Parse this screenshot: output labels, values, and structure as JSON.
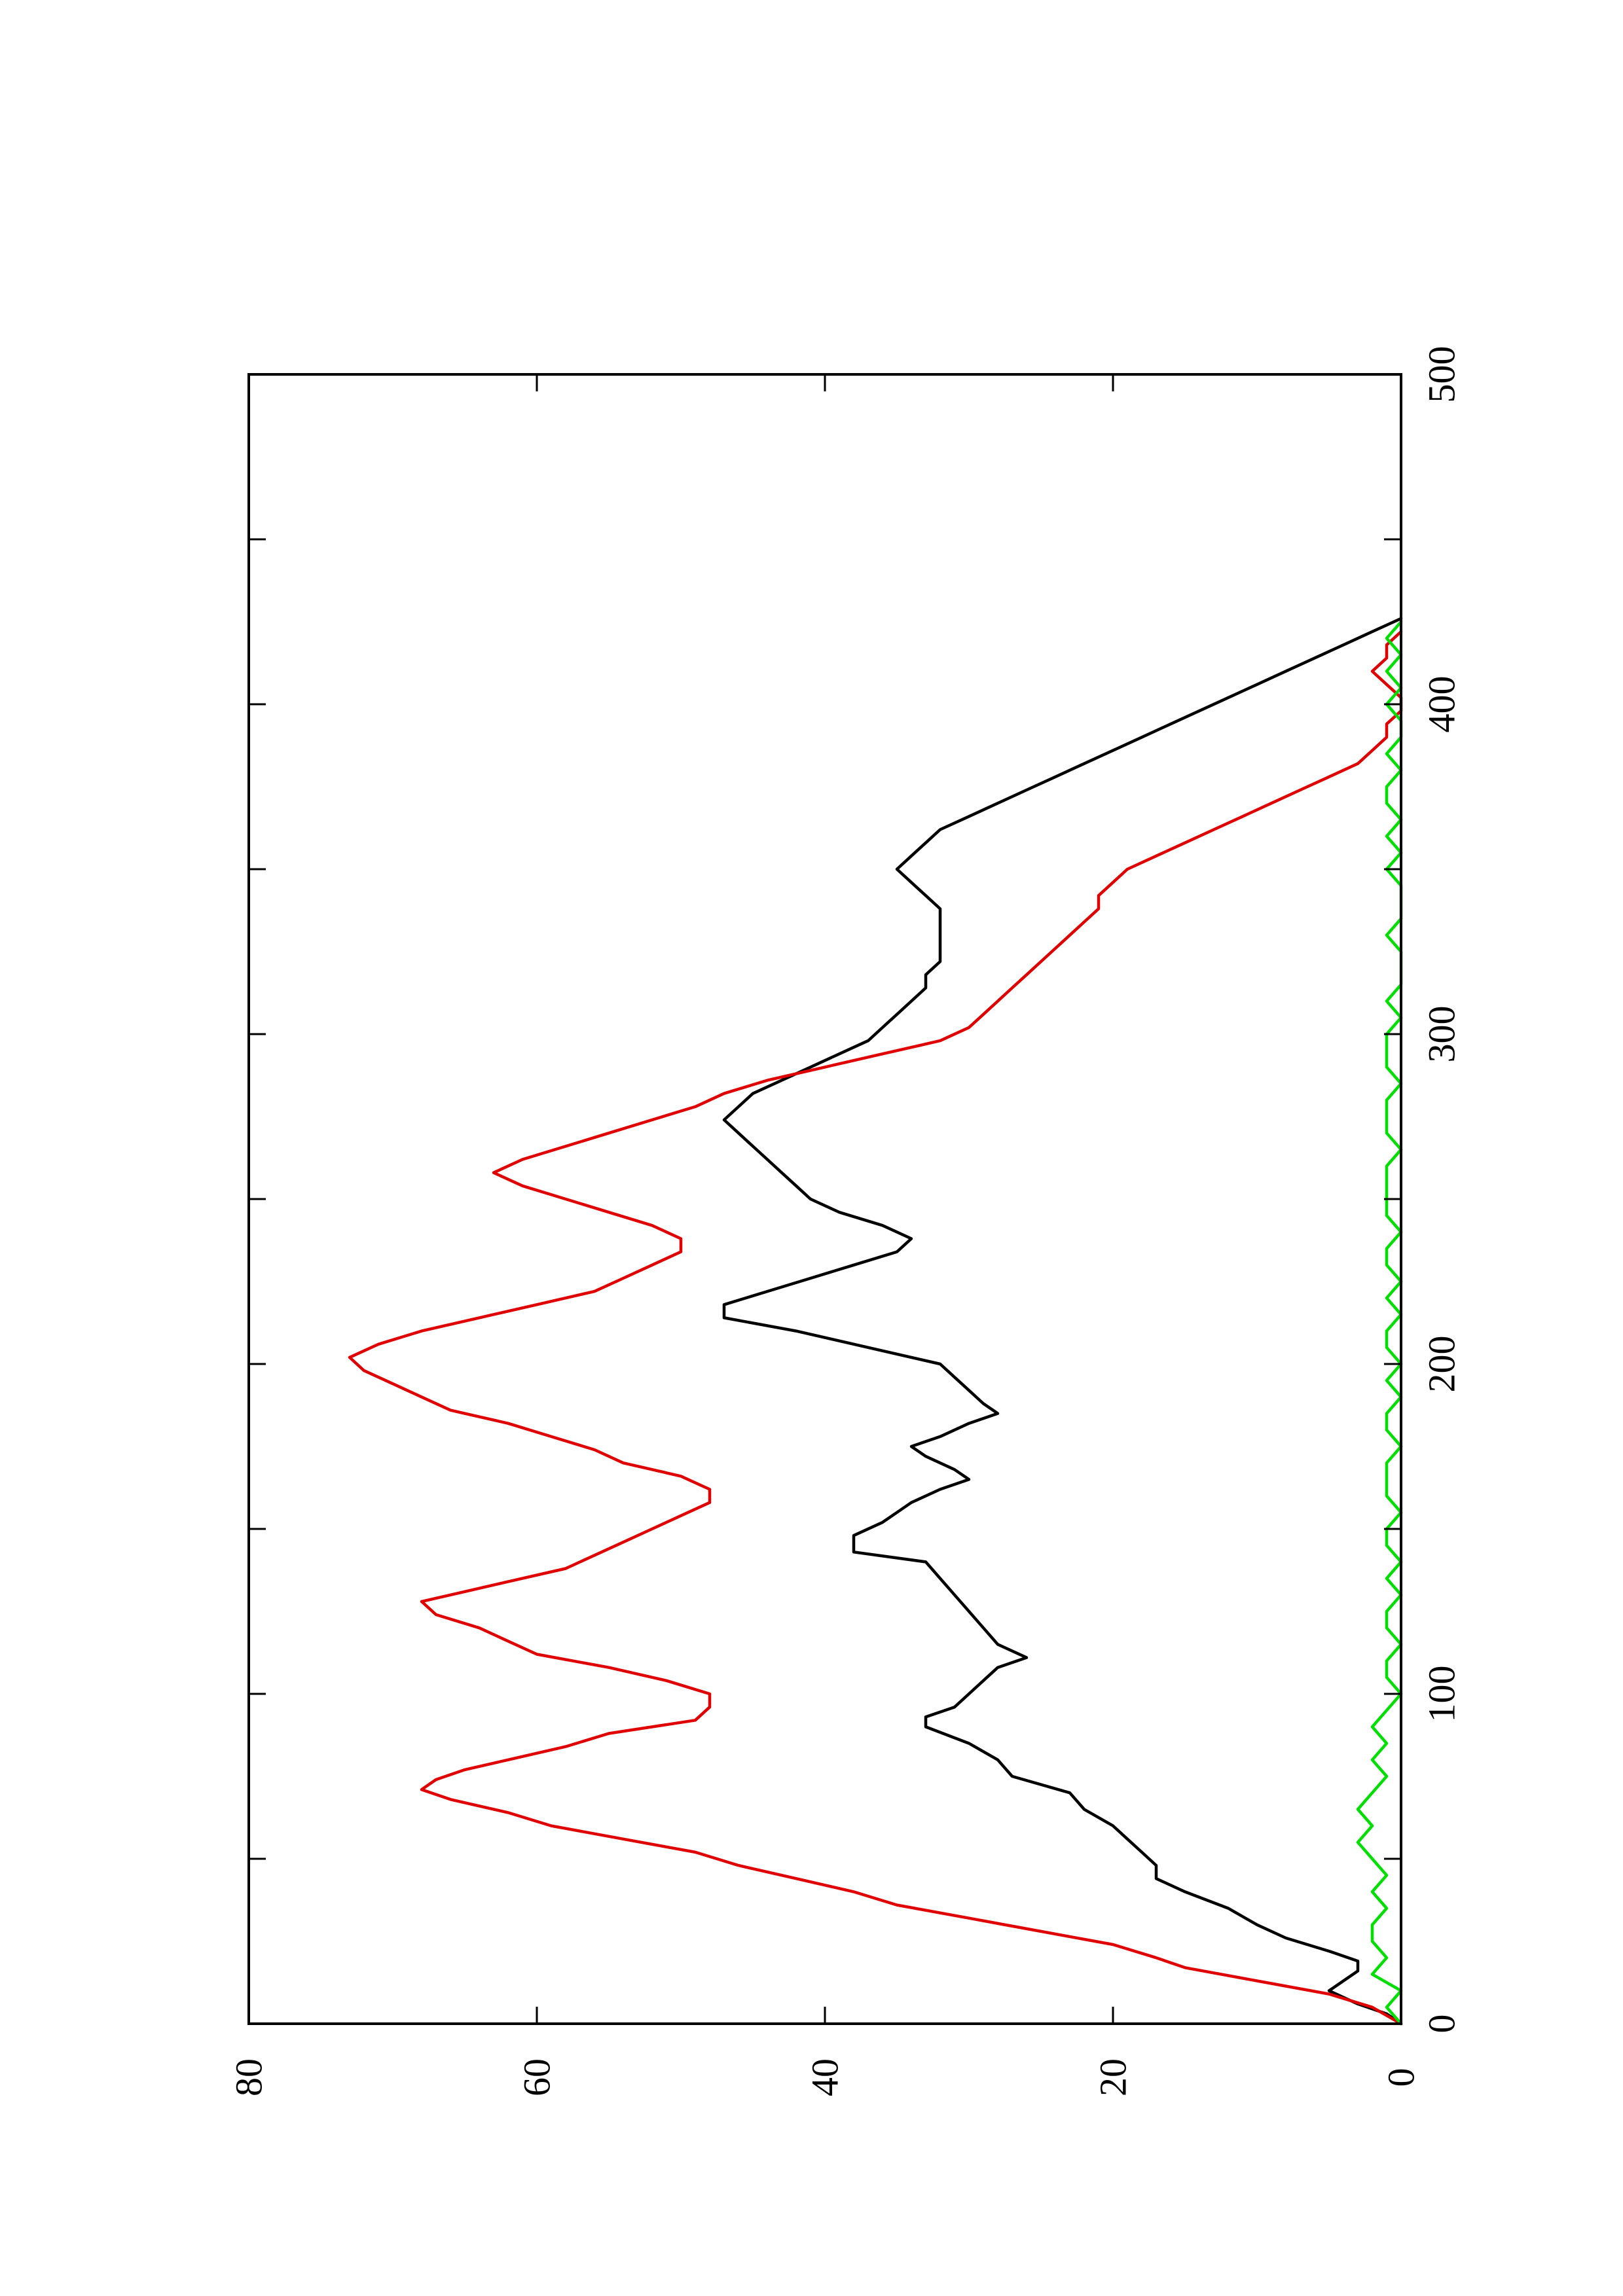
{
  "chart_data": {
    "type": "line",
    "title": "",
    "xlabel": "",
    "ylabel": "",
    "orientation": "rotated-90-counterclockwise",
    "grid": false,
    "legend": "none",
    "xlim": [
      0,
      500
    ],
    "ylim": [
      0,
      80
    ],
    "x_ticks": [
      0,
      100,
      200,
      300,
      400,
      500
    ],
    "x_minor_ticks": [
      50,
      150,
      250,
      350,
      450
    ],
    "y_ticks": [
      0,
      20,
      40,
      60,
      80
    ],
    "x_tick_labels": [
      "0",
      "100",
      "200",
      "300",
      "400",
      "500"
    ],
    "y_tick_labels": [
      "0",
      "20",
      "40",
      "60",
      "80"
    ],
    "series": [
      {
        "color": "#000000",
        "points": [
          [
            0,
            0
          ],
          [
            3,
            1
          ],
          [
            6,
            3
          ],
          [
            10,
            5
          ],
          [
            13,
            4
          ],
          [
            16,
            3
          ],
          [
            19,
            3
          ],
          [
            22,
            5
          ],
          [
            26,
            8
          ],
          [
            30,
            10
          ],
          [
            35,
            12
          ],
          [
            40,
            15
          ],
          [
            44,
            17
          ],
          [
            48,
            17
          ],
          [
            52,
            18
          ],
          [
            56,
            19
          ],
          [
            60,
            20
          ],
          [
            65,
            22
          ],
          [
            70,
            23
          ],
          [
            75,
            27
          ],
          [
            80,
            28
          ],
          [
            85,
            30
          ],
          [
            90,
            33
          ],
          [
            93,
            33
          ],
          [
            96,
            31
          ],
          [
            100,
            30
          ],
          [
            104,
            29
          ],
          [
            108,
            28
          ],
          [
            111,
            26
          ],
          [
            115,
            28
          ],
          [
            120,
            29
          ],
          [
            125,
            30
          ],
          [
            130,
            31
          ],
          [
            135,
            32
          ],
          [
            140,
            33
          ],
          [
            143,
            38
          ],
          [
            148,
            38
          ],
          [
            152,
            36
          ],
          [
            155,
            35
          ],
          [
            158,
            34
          ],
          [
            162,
            32
          ],
          [
            165,
            30
          ],
          [
            168,
            31
          ],
          [
            172,
            33
          ],
          [
            175,
            34
          ],
          [
            178,
            32
          ],
          [
            182,
            30
          ],
          [
            185,
            28
          ],
          [
            188,
            29
          ],
          [
            192,
            30
          ],
          [
            196,
            31
          ],
          [
            200,
            32
          ],
          [
            205,
            37
          ],
          [
            210,
            42
          ],
          [
            214,
            47
          ],
          [
            218,
            47
          ],
          [
            222,
            44
          ],
          [
            226,
            41
          ],
          [
            230,
            38
          ],
          [
            234,
            35
          ],
          [
            238,
            34
          ],
          [
            242,
            36
          ],
          [
            246,
            39
          ],
          [
            250,
            41
          ],
          [
            254,
            42
          ],
          [
            258,
            43
          ],
          [
            262,
            44
          ],
          [
            266,
            45
          ],
          [
            270,
            46
          ],
          [
            274,
            47
          ],
          [
            278,
            46
          ],
          [
            282,
            45
          ],
          [
            286,
            43
          ],
          [
            290,
            41
          ],
          [
            294,
            39
          ],
          [
            298,
            37
          ],
          [
            302,
            36
          ],
          [
            306,
            35
          ],
          [
            310,
            34
          ],
          [
            314,
            33
          ],
          [
            318,
            33
          ],
          [
            322,
            32
          ],
          [
            326,
            32
          ],
          [
            330,
            32
          ],
          [
            334,
            32
          ],
          [
            338,
            32
          ],
          [
            342,
            33
          ],
          [
            346,
            34
          ],
          [
            350,
            35
          ],
          [
            354,
            34
          ],
          [
            358,
            33
          ],
          [
            362,
            32
          ],
          [
            366,
            30
          ],
          [
            370,
            28
          ],
          [
            374,
            26
          ],
          [
            378,
            24
          ],
          [
            382,
            22
          ],
          [
            386,
            20
          ],
          [
            390,
            18
          ],
          [
            394,
            16
          ],
          [
            398,
            14
          ],
          [
            402,
            12
          ],
          [
            406,
            10
          ],
          [
            410,
            8
          ],
          [
            414,
            6
          ],
          [
            418,
            4
          ],
          [
            422,
            2
          ],
          [
            426,
            0
          ]
        ]
      },
      {
        "color": "#e00000",
        "points": [
          [
            0,
            0
          ],
          [
            5,
            2
          ],
          [
            9,
            5
          ],
          [
            13,
            10
          ],
          [
            17,
            15
          ],
          [
            20,
            17
          ],
          [
            24,
            20
          ],
          [
            28,
            25
          ],
          [
            32,
            30
          ],
          [
            36,
            35
          ],
          [
            40,
            38
          ],
          [
            44,
            42
          ],
          [
            48,
            46
          ],
          [
            52,
            49
          ],
          [
            56,
            54
          ],
          [
            60,
            59
          ],
          [
            64,
            62
          ],
          [
            68,
            66
          ],
          [
            71,
            68
          ],
          [
            74,
            67
          ],
          [
            77,
            65
          ],
          [
            80,
            62
          ],
          [
            84,
            58
          ],
          [
            88,
            55
          ],
          [
            92,
            49
          ],
          [
            96,
            48
          ],
          [
            100,
            48
          ],
          [
            104,
            51
          ],
          [
            108,
            55
          ],
          [
            112,
            60
          ],
          [
            116,
            62
          ],
          [
            120,
            64
          ],
          [
            124,
            67
          ],
          [
            128,
            68
          ],
          [
            131,
            65
          ],
          [
            134,
            62
          ],
          [
            138,
            58
          ],
          [
            142,
            56
          ],
          [
            146,
            54
          ],
          [
            150,
            52
          ],
          [
            154,
            50
          ],
          [
            158,
            48
          ],
          [
            162,
            48
          ],
          [
            166,
            50
          ],
          [
            170,
            54
          ],
          [
            174,
            56
          ],
          [
            178,
            59
          ],
          [
            182,
            62
          ],
          [
            186,
            66
          ],
          [
            190,
            68
          ],
          [
            194,
            70
          ],
          [
            198,
            72
          ],
          [
            202,
            73
          ],
          [
            206,
            71
          ],
          [
            210,
            68
          ],
          [
            214,
            64
          ],
          [
            218,
            60
          ],
          [
            222,
            56
          ],
          [
            226,
            54
          ],
          [
            230,
            52
          ],
          [
            234,
            50
          ],
          [
            238,
            50
          ],
          [
            242,
            52
          ],
          [
            246,
            55
          ],
          [
            250,
            58
          ],
          [
            254,
            61
          ],
          [
            258,
            63
          ],
          [
            262,
            61
          ],
          [
            266,
            58
          ],
          [
            270,
            55
          ],
          [
            274,
            52
          ],
          [
            278,
            49
          ],
          [
            282,
            47
          ],
          [
            286,
            44
          ],
          [
            290,
            40
          ],
          [
            294,
            36
          ],
          [
            298,
            32
          ],
          [
            302,
            30
          ],
          [
            306,
            29
          ],
          [
            310,
            28
          ],
          [
            314,
            27
          ],
          [
            318,
            26
          ],
          [
            322,
            25
          ],
          [
            326,
            24
          ],
          [
            330,
            23
          ],
          [
            334,
            22
          ],
          [
            338,
            21
          ],
          [
            342,
            21
          ],
          [
            346,
            20
          ],
          [
            350,
            19
          ],
          [
            354,
            17
          ],
          [
            358,
            15
          ],
          [
            362,
            13
          ],
          [
            366,
            11
          ],
          [
            370,
            9
          ],
          [
            374,
            7
          ],
          [
            378,
            5
          ],
          [
            382,
            3
          ],
          [
            386,
            2
          ],
          [
            390,
            1
          ],
          [
            394,
            1
          ],
          [
            398,
            0
          ],
          [
            402,
            0
          ],
          [
            406,
            1
          ],
          [
            410,
            2
          ],
          [
            414,
            1
          ],
          [
            418,
            1
          ],
          [
            422,
            0
          ]
        ]
      },
      {
        "color": "#00e000",
        "points": [
          [
            0,
            0
          ],
          [
            5,
            1
          ],
          [
            10,
            0
          ],
          [
            15,
            2
          ],
          [
            20,
            1
          ],
          [
            25,
            2
          ],
          [
            30,
            2
          ],
          [
            35,
            1
          ],
          [
            40,
            2
          ],
          [
            45,
            1
          ],
          [
            50,
            2
          ],
          [
            55,
            3
          ],
          [
            60,
            2
          ],
          [
            65,
            3
          ],
          [
            70,
            2
          ],
          [
            75,
            1
          ],
          [
            80,
            2
          ],
          [
            85,
            1
          ],
          [
            90,
            2
          ],
          [
            95,
            1
          ],
          [
            100,
            0
          ],
          [
            105,
            1
          ],
          [
            110,
            1
          ],
          [
            115,
            0
          ],
          [
            120,
            1
          ],
          [
            125,
            1
          ],
          [
            130,
            0
          ],
          [
            135,
            1
          ],
          [
            140,
            0
          ],
          [
            145,
            1
          ],
          [
            150,
            1
          ],
          [
            155,
            0
          ],
          [
            160,
            1
          ],
          [
            165,
            1
          ],
          [
            170,
            1
          ],
          [
            175,
            0
          ],
          [
            180,
            1
          ],
          [
            185,
            1
          ],
          [
            190,
            0
          ],
          [
            195,
            1
          ],
          [
            200,
            0
          ],
          [
            205,
            1
          ],
          [
            210,
            1
          ],
          [
            215,
            0
          ],
          [
            220,
            1
          ],
          [
            225,
            0
          ],
          [
            230,
            1
          ],
          [
            235,
            1
          ],
          [
            240,
            0
          ],
          [
            245,
            1
          ],
          [
            250,
            1
          ],
          [
            255,
            1
          ],
          [
            260,
            1
          ],
          [
            265,
            0
          ],
          [
            270,
            1
          ],
          [
            275,
            1
          ],
          [
            280,
            1
          ],
          [
            285,
            0
          ],
          [
            290,
            1
          ],
          [
            295,
            1
          ],
          [
            300,
            1
          ],
          [
            305,
            0
          ],
          [
            310,
            1
          ],
          [
            315,
            0
          ],
          [
            320,
            0
          ],
          [
            325,
            0
          ],
          [
            330,
            1
          ],
          [
            335,
            0
          ],
          [
            340,
            0
          ],
          [
            345,
            0
          ],
          [
            350,
            1
          ],
          [
            355,
            0
          ],
          [
            360,
            1
          ],
          [
            365,
            0
          ],
          [
            370,
            1
          ],
          [
            375,
            1
          ],
          [
            380,
            0
          ],
          [
            385,
            1
          ],
          [
            390,
            0
          ],
          [
            395,
            0
          ],
          [
            400,
            1
          ],
          [
            405,
            0
          ],
          [
            410,
            1
          ],
          [
            415,
            0
          ],
          [
            420,
            1
          ],
          [
            425,
            0
          ]
        ]
      }
    ]
  }
}
